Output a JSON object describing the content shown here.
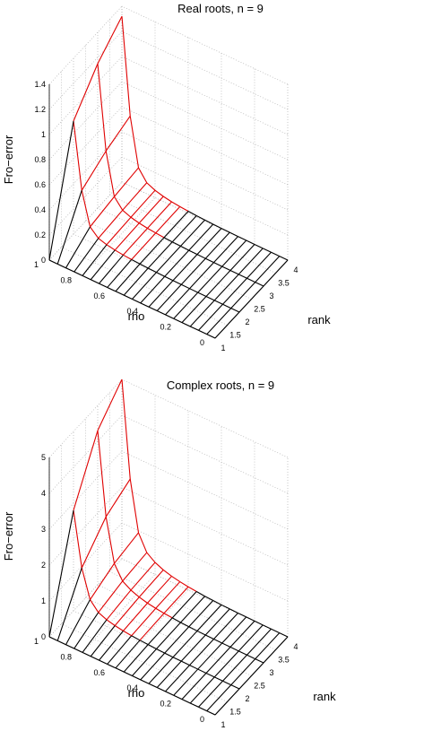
{
  "chart_data": [
    {
      "type": "surface",
      "title": "Real roots, n = 9",
      "xlabel": "rank",
      "ylabel": "rho",
      "zlabel": "Fro−error",
      "x_range": [
        1,
        4
      ],
      "y_range": [
        0,
        1
      ],
      "zlim": [
        0,
        1.4
      ],
      "x_ticks": [
        "1",
        "1.5",
        "2",
        "2.5",
        "3",
        "3.5",
        "4"
      ],
      "y_ticks": [
        "0",
        "0.2",
        "0.4",
        "0.6",
        "0.8",
        "1"
      ],
      "z_ticks": [
        "0",
        "0.2",
        "0.4",
        "0.6",
        "0.8",
        "1",
        "1.2",
        "1.4"
      ],
      "grid": true,
      "ranks": [
        1,
        2,
        3,
        4
      ],
      "rho_values": [
        1.0,
        0.95,
        0.9,
        0.85,
        0.8,
        0.75,
        0.7,
        0.65,
        0.6,
        0.55,
        0.5,
        0.45,
        0.4,
        0.35,
        0.3,
        0.25,
        0.2,
        0.15,
        0.1,
        0.05,
        0.0
      ],
      "z_profile": [
        0.9,
        0.38,
        0.12,
        0.06,
        0.04,
        0.028,
        0.02,
        0.015,
        0.011,
        0.008,
        0.006,
        0.004,
        0.003,
        0.002,
        0.0015,
        0.001,
        0.0007,
        0.0004,
        0.0002,
        0.0001,
        0.0
      ],
      "z_at_rho1": [
        0.0,
        0.9,
        1.15,
        1.32
      ],
      "red_threshold": 0.012
    },
    {
      "type": "surface",
      "title": "Complex roots, n = 9",
      "xlabel": "rank",
      "ylabel": "rho",
      "zlabel": "Fro−error",
      "x_range": [
        1,
        4
      ],
      "y_range": [
        0,
        1
      ],
      "zlim": [
        0,
        5
      ],
      "x_ticks": [
        "1",
        "1.5",
        "2",
        "2.5",
        "3",
        "3.5",
        "4"
      ],
      "y_ticks": [
        "0",
        "0.2",
        "0.4",
        "0.6",
        "0.8",
        "1"
      ],
      "z_ticks": [
        "0",
        "1",
        "2",
        "3",
        "4",
        "5"
      ],
      "grid": true,
      "ranks": [
        1,
        2,
        3,
        4
      ],
      "rho_values": [
        1.0,
        0.95,
        0.9,
        0.85,
        0.8,
        0.75,
        0.7,
        0.65,
        0.6,
        0.55,
        0.5,
        0.45,
        0.4,
        0.35,
        0.3,
        0.25,
        0.2,
        0.15,
        0.1,
        0.05,
        0.0
      ],
      "z_profile": [
        0.9,
        0.42,
        0.17,
        0.09,
        0.06,
        0.042,
        0.03,
        0.022,
        0.016,
        0.012,
        0.008,
        0.006,
        0.004,
        0.003,
        0.002,
        0.0015,
        0.001,
        0.0006,
        0.0003,
        0.0001,
        0.0
      ],
      "z_at_rho1": [
        0.0,
        2.8,
        4.3,
        5.0
      ],
      "red_threshold": 0.014
    }
  ]
}
